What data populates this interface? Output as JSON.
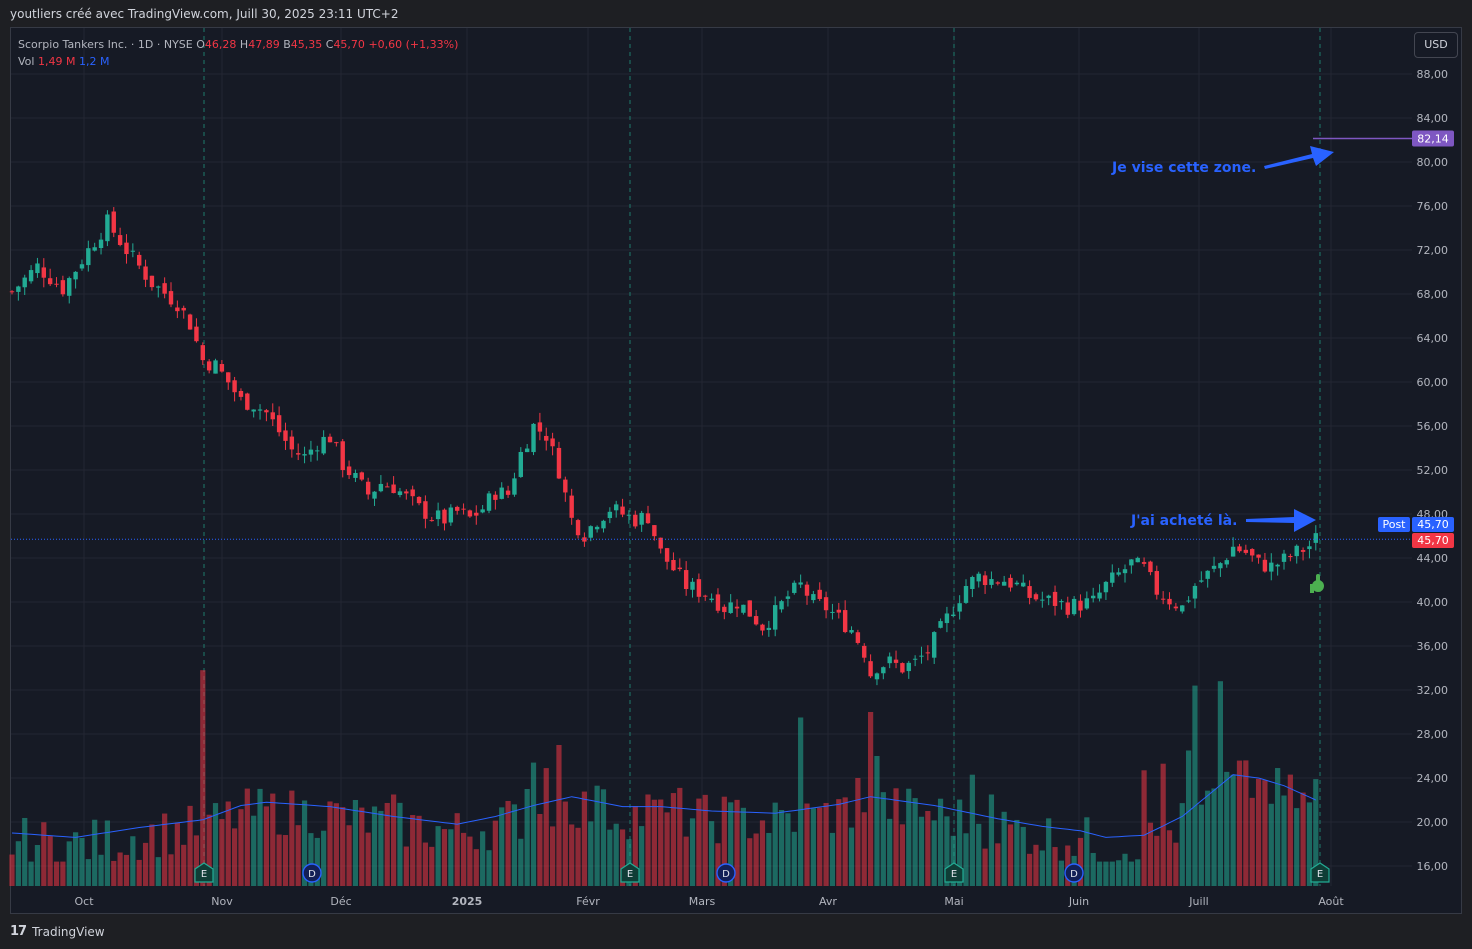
{
  "header": {
    "text": "youtliers créé avec TradingView.com, Juill 30, 2025 23:11 UTC+2"
  },
  "legend": {
    "symbol": "Scorpio Tankers Inc. · 1D · NYSE",
    "o_label": "O",
    "o_value": "46,28",
    "h_label": "H",
    "h_value": "47,89",
    "b_label": "B",
    "b_value": "45,35",
    "c_label": "C",
    "c_value": "45,70",
    "change": "+0,60 (+1,33%)",
    "vol_label": "Vol",
    "vol_value": "1,49 M",
    "vol_ma": "1,2 M"
  },
  "currency_button": "USD",
  "footer": {
    "brand": "TradingView",
    "logo": "17"
  },
  "colors": {
    "up": "#22ab94",
    "down": "#f23645",
    "ma": "#2962ff",
    "target": "#7e57c2",
    "annotation": "#2962ff"
  },
  "chart_data": {
    "type": "candlestick",
    "title": "Scorpio Tankers Inc. · 1D · NYSE",
    "ylim": [
      14,
      90
    ],
    "y_ticks": [
      "88,00",
      "84,00",
      "80,00",
      "76,00",
      "72,00",
      "68,00",
      "64,00",
      "60,00",
      "56,00",
      "52,00",
      "48,00",
      "44,00",
      "40,00",
      "36,00",
      "32,00",
      "28,00",
      "24,00",
      "20,00",
      "16,00"
    ],
    "x_ticks": [
      "Oct",
      "Nov",
      "Déc",
      "2025",
      "Févr",
      "Mars",
      "Avr",
      "Mai",
      "Juin",
      "Juill",
      "Août"
    ],
    "last_price": "45,70",
    "post_label": "Post",
    "post_price": "45,70",
    "target_price": "82,14",
    "target_value": 82.14,
    "events": [
      "E",
      "D",
      "E",
      "D",
      "E",
      "D",
      "E"
    ],
    "annotations": [
      {
        "text": "Je vise cette zone."
      },
      {
        "text": "J'ai acheté là."
      }
    ],
    "close_path": [
      [
        0,
        68.2
      ],
      [
        4,
        70.5
      ],
      [
        8,
        68.5
      ],
      [
        12,
        72.0
      ],
      [
        15,
        74.5
      ],
      [
        18,
        72.0
      ],
      [
        22,
        69.0
      ],
      [
        26,
        67.2
      ],
      [
        28,
        65.3
      ],
      [
        30,
        62.0
      ],
      [
        32,
        61.5
      ],
      [
        34,
        60.0
      ],
      [
        36,
        58.3
      ],
      [
        38,
        58.0
      ],
      [
        40,
        57.2
      ],
      [
        42,
        55.5
      ],
      [
        44,
        53.8
      ],
      [
        46,
        53.2
      ],
      [
        48,
        54.5
      ],
      [
        50,
        55.0
      ],
      [
        52,
        52.5
      ],
      [
        54,
        51.2
      ],
      [
        56,
        49.8
      ],
      [
        58,
        50.8
      ],
      [
        60,
        50.5
      ],
      [
        62,
        49.5
      ],
      [
        64,
        48.5
      ],
      [
        66,
        47.8
      ],
      [
        68,
        47.5
      ],
      [
        70,
        48.2
      ],
      [
        72,
        47.6
      ],
      [
        74,
        48.5
      ],
      [
        76,
        50.0
      ],
      [
        78,
        49.8
      ],
      [
        80,
        53.5
      ],
      [
        82,
        56.0
      ],
      [
        84,
        55.2
      ],
      [
        86,
        52.0
      ],
      [
        88,
        47.5
      ],
      [
        90,
        46.2
      ],
      [
        92,
        47.5
      ],
      [
        94,
        48.5
      ],
      [
        96,
        48.0
      ],
      [
        98,
        47.5
      ],
      [
        100,
        47.8
      ],
      [
        102,
        44.5
      ],
      [
        104,
        43.0
      ],
      [
        106,
        41.5
      ],
      [
        108,
        41.0
      ],
      [
        110,
        40.5
      ],
      [
        112,
        39.5
      ],
      [
        114,
        40.0
      ],
      [
        116,
        39.0
      ],
      [
        118,
        37.8
      ],
      [
        120,
        39.0
      ],
      [
        122,
        40.5
      ],
      [
        124,
        41.5
      ],
      [
        126,
        40.0
      ],
      [
        128,
        39.5
      ],
      [
        130,
        38.5
      ],
      [
        132,
        37.5
      ],
      [
        134,
        35.5
      ],
      [
        135,
        33.5
      ],
      [
        136,
        34.2
      ],
      [
        138,
        34.5
      ],
      [
        140,
        34.0
      ],
      [
        142,
        34.5
      ],
      [
        144,
        35.5
      ],
      [
        146,
        37.5
      ],
      [
        148,
        39.5
      ],
      [
        150,
        41.5
      ],
      [
        152,
        42.3
      ],
      [
        154,
        42.0
      ],
      [
        156,
        42.0
      ],
      [
        158,
        41.5
      ],
      [
        160,
        40.5
      ],
      [
        162,
        40.2
      ],
      [
        164,
        40.0
      ],
      [
        166,
        39.6
      ],
      [
        168,
        39.8
      ],
      [
        170,
        40.0
      ],
      [
        172,
        41.5
      ],
      [
        174,
        42.5
      ],
      [
        176,
        43.5
      ],
      [
        178,
        43.0
      ],
      [
        180,
        41.0
      ],
      [
        182,
        40.2
      ],
      [
        184,
        39.5
      ],
      [
        186,
        41.5
      ],
      [
        188,
        42.5
      ],
      [
        190,
        43.5
      ],
      [
        192,
        45.0
      ],
      [
        194,
        44.5
      ],
      [
        196,
        43.5
      ],
      [
        198,
        43.2
      ],
      [
        200,
        43.8
      ],
      [
        202,
        44.5
      ],
      [
        204,
        45.1
      ],
      [
        205,
        45.7
      ]
    ],
    "volume_ma": [
      [
        0,
        19.0
      ],
      [
        10,
        18.6
      ],
      [
        20,
        19.5
      ],
      [
        30,
        20.2
      ],
      [
        36,
        21.5
      ],
      [
        40,
        21.8
      ],
      [
        50,
        21.4
      ],
      [
        60,
        20.5
      ],
      [
        70,
        19.8
      ],
      [
        76,
        20.5
      ],
      [
        82,
        21.5
      ],
      [
        88,
        22.3
      ],
      [
        96,
        21.4
      ],
      [
        102,
        21.4
      ],
      [
        110,
        21.0
      ],
      [
        120,
        20.8
      ],
      [
        130,
        21.6
      ],
      [
        135,
        22.3
      ],
      [
        145,
        21.5
      ],
      [
        155,
        20.3
      ],
      [
        162,
        19.6
      ],
      [
        168,
        19.2
      ],
      [
        172,
        18.6
      ],
      [
        178,
        18.8
      ],
      [
        184,
        20.5
      ],
      [
        188,
        22.4
      ],
      [
        192,
        24.3
      ],
      [
        196,
        24.0
      ],
      [
        200,
        23.3
      ],
      [
        205,
        22.0
      ]
    ],
    "volume_spikes": [
      [
        30,
        33.8
      ],
      [
        60,
        22.5
      ],
      [
        81,
        23.0
      ],
      [
        82,
        25.4
      ],
      [
        84,
        24.9
      ],
      [
        86,
        27.0
      ],
      [
        92,
        23.3
      ],
      [
        100,
        22.5
      ],
      [
        105,
        23.1
      ],
      [
        112,
        22.3
      ],
      [
        124,
        29.5
      ],
      [
        127,
        21.3
      ],
      [
        133,
        24.0
      ],
      [
        135,
        30.0
      ],
      [
        136,
        26.0
      ],
      [
        151,
        24.3
      ],
      [
        154,
        22.5
      ],
      [
        178,
        24.7
      ],
      [
        181,
        25.3
      ],
      [
        185,
        26.5
      ],
      [
        186,
        32.4
      ],
      [
        190,
        32.8
      ],
      [
        192,
        24.3
      ],
      [
        194,
        25.6
      ],
      [
        197,
        23.8
      ],
      [
        205,
        23.9
      ]
    ],
    "legend_placement": "top-left",
    "grid": true
  }
}
